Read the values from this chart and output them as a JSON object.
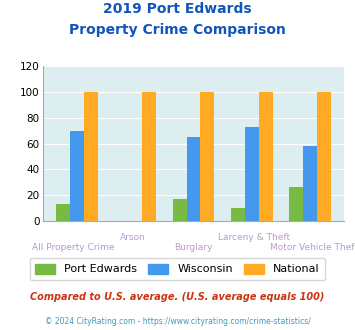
{
  "title_line1": "2019 Port Edwards",
  "title_line2": "Property Crime Comparison",
  "categories": [
    "All Property Crime",
    "Arson",
    "Burglary",
    "Larceny & Theft",
    "Motor Vehicle Theft"
  ],
  "port_edwards": [
    13,
    0,
    17,
    10,
    26
  ],
  "wisconsin": [
    70,
    0,
    65,
    73,
    58
  ],
  "national": [
    100,
    100,
    100,
    100,
    100
  ],
  "color_pe": "#77bb44",
  "color_wi": "#4499ee",
  "color_nat": "#ffaa22",
  "ylim": [
    0,
    120
  ],
  "yticks": [
    0,
    20,
    40,
    60,
    80,
    100,
    120
  ],
  "bg_color": "#ddeef0",
  "title_color": "#1155bb",
  "label_color": "#bb99cc",
  "legend_label_pe": "Port Edwards",
  "legend_label_wi": "Wisconsin",
  "legend_label_nat": "National",
  "footer_text": "Compared to U.S. average. (U.S. average equals 100)",
  "copyright_text": "© 2024 CityRating.com - https://www.cityrating.com/crime-statistics/",
  "footer_color": "#cc3311",
  "copyright_color": "#4499bb"
}
